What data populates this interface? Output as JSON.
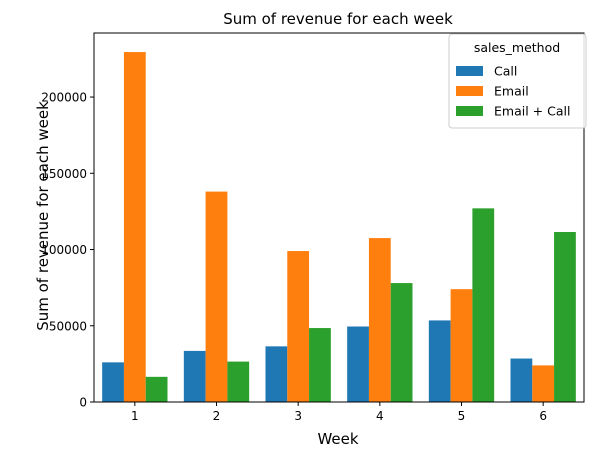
{
  "chart_data": {
    "type": "bar",
    "title": "Sum of revenue for each week",
    "xlabel": "Week",
    "ylabel": "Sum of revenue for each week",
    "categories": [
      "1",
      "2",
      "3",
      "4",
      "5",
      "6"
    ],
    "ylim": [
      0,
      242000
    ],
    "yticks": [
      0,
      50000,
      100000,
      150000,
      200000
    ],
    "ytick_labels": [
      "0",
      "50000",
      "100000",
      "150000",
      "200000"
    ],
    "grid": false,
    "legend": {
      "title": "sales_method",
      "placement": "top-right"
    },
    "series": [
      {
        "name": "Call",
        "color": "#1f77b4",
        "values": [
          26000,
          33500,
          36500,
          49500,
          53500,
          28500
        ]
      },
      {
        "name": "Email",
        "color": "#ff7f0e",
        "values": [
          229500,
          138000,
          99000,
          107500,
          74000,
          24000
        ]
      },
      {
        "name": "Email + Call",
        "color": "#2ca02c",
        "values": [
          16500,
          26500,
          48500,
          78000,
          127000,
          111500
        ]
      }
    ]
  }
}
